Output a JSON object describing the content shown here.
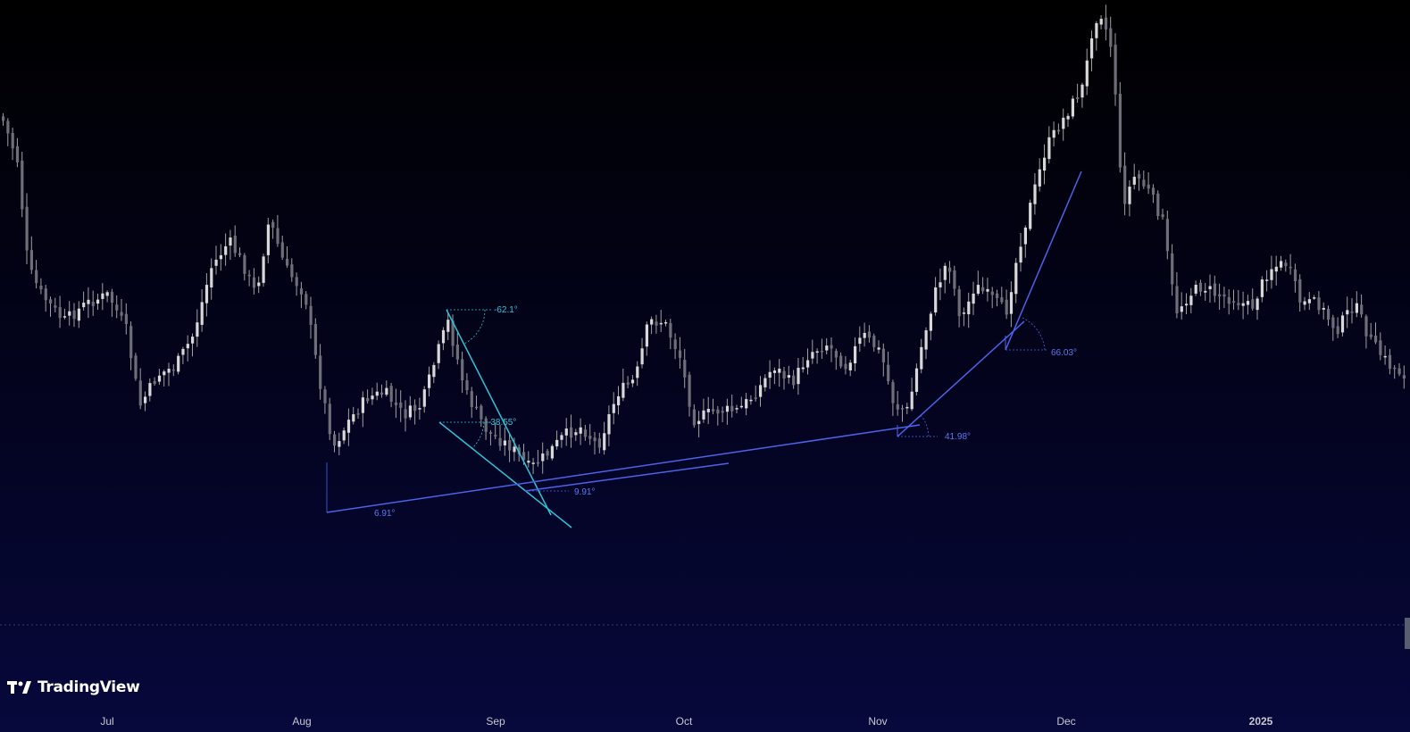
{
  "brand": {
    "name": "TradingView"
  },
  "colors": {
    "candle": "#d8d8d8",
    "wick": "#a0a0a0",
    "trend_cyan": "#2ec4d8",
    "trend_blue": "#4b63e8",
    "axis_text": "#c8c8d0"
  },
  "chart_data": {
    "type": "candlestick",
    "title": "",
    "x_ticks": [
      "Jul",
      "Aug",
      "Sep",
      "Oct",
      "Nov",
      "Dec",
      "2025"
    ],
    "angle_annotations": [
      {
        "label": "-62.1°",
        "color": "cyan"
      },
      {
        "label": "-38.55°",
        "color": "cyan"
      },
      {
        "label": "6.91°",
        "color": "blue"
      },
      {
        "label": "9.91°",
        "color": "blue"
      },
      {
        "label": "41.98°",
        "color": "blue"
      },
      {
        "label": "66.03°",
        "color": "blue"
      }
    ],
    "grid": false
  }
}
